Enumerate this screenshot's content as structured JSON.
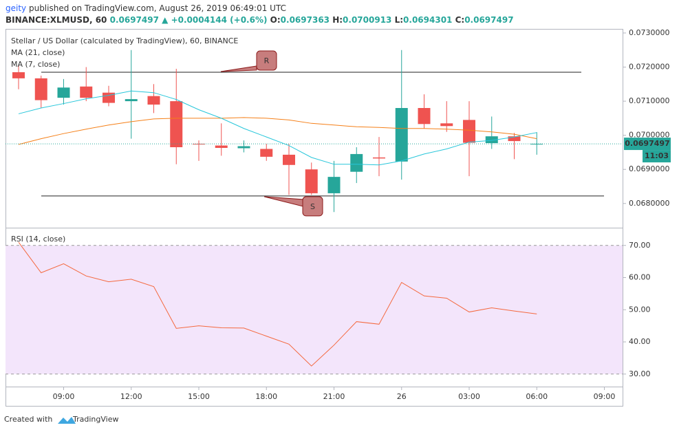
{
  "header": {
    "author": "geity",
    "published": "published on TradingView.com, August 26, 2019 06:49:01 UTC",
    "symbol": "BINANCE:XLMUSD, 60",
    "last": "0.0697497",
    "change": "▲ +0.0004144 (+0.6%)",
    "ohlc": [
      {
        "label": "O:",
        "value": "0.0697363"
      },
      {
        "label": "H:",
        "value": "0.0700913"
      },
      {
        "label": "L:",
        "value": "0.0694301"
      },
      {
        "label": "C:",
        "value": "0.0697497"
      }
    ]
  },
  "footer": {
    "created": "Created with",
    "brand": "TradingView"
  },
  "chart_data": [
    {
      "type": "candlestick",
      "title": "Stellar / US Dollar (calculated by TradingView), 60, BINANCE",
      "up_color": "#26a69a",
      "down_color": "#ef5350",
      "categories": [
        null,
        null,
        "09:00",
        null,
        null,
        "12:00",
        null,
        null,
        "15:00",
        null,
        null,
        "18:00",
        null,
        null,
        "21:00",
        null,
        null,
        "26",
        null,
        null,
        "03:00",
        null,
        null,
        "06:00",
        null,
        null,
        "09:00"
      ],
      "open": [
        0.07185,
        0.07167,
        0.0711,
        0.07143,
        0.07125,
        0.071,
        0.07115,
        0.071,
        0.06975,
        0.0697,
        0.06962,
        0.0696,
        0.06943,
        0.069,
        0.0683,
        0.06893,
        0.06935,
        0.06923,
        0.0708,
        0.07035,
        0.07045,
        0.06977,
        0.06997,
        0.0697363,
        null,
        null,
        null
      ],
      "high": [
        0.07205,
        0.07175,
        0.07165,
        0.072,
        0.07145,
        0.0725,
        0.0715,
        0.07195,
        0.06985,
        0.07035,
        0.06985,
        0.06975,
        0.06975,
        0.0692,
        0.06925,
        0.06965,
        0.06995,
        0.0725,
        0.0712,
        0.071,
        0.071,
        0.07055,
        0.07007,
        0.0700913,
        null,
        null,
        null
      ],
      "low": [
        0.07135,
        0.0708,
        0.0709,
        0.071,
        0.07085,
        0.0699,
        0.07065,
        0.06915,
        0.06925,
        0.0694,
        0.0695,
        0.06925,
        0.06825,
        0.06825,
        0.06775,
        0.0686,
        0.0688,
        0.0687,
        0.0702,
        0.0701,
        0.0688,
        0.0696,
        0.0693,
        0.0694301,
        null,
        null,
        null
      ],
      "close": [
        0.07167,
        0.07103,
        0.0714,
        0.0711,
        0.07095,
        0.07106,
        0.0709,
        0.06965,
        0.06973,
        0.06963,
        0.06968,
        0.06937,
        0.06913,
        0.0683,
        0.06878,
        0.06945,
        0.06932,
        0.0708,
        0.07033,
        0.07027,
        0.06978,
        0.06997,
        0.06983,
        0.0697497,
        null,
        null,
        null
      ],
      "series": [
        {
          "name": "MA (21, close)",
          "color": "#f57f17",
          "values": [
            0.06973,
            0.0699,
            0.07005,
            0.07018,
            0.0703,
            0.0704,
            0.07048,
            0.0705,
            0.0705,
            0.0705,
            0.07052,
            0.0705,
            0.07045,
            0.07035,
            0.0703,
            0.07025,
            0.07023,
            0.0702,
            0.0702,
            0.07018,
            0.07015,
            0.0701,
            0.07003,
            0.0699,
            null,
            null,
            null
          ]
        },
        {
          "name": "MA (7, close)",
          "color": "#26c6da",
          "values": [
            0.07063,
            0.0708,
            0.07093,
            0.07107,
            0.07117,
            0.0713,
            0.07125,
            0.07105,
            0.07075,
            0.0705,
            0.0702,
            0.06995,
            0.0697,
            0.06935,
            0.06915,
            0.06915,
            0.06913,
            0.06925,
            0.06945,
            0.0696,
            0.0698,
            0.06985,
            0.06995,
            0.07008,
            null,
            null,
            null
          ]
        }
      ],
      "annotations": [
        {
          "label": "R",
          "value": 0.07185
        },
        {
          "label": "S",
          "value": 0.06822
        }
      ],
      "countdown": "11:03",
      "ylim": [
        0.06731,
        0.07312
      ],
      "yticks": [
        {
          "value": 0.068,
          "label": "0.0680000"
        },
        {
          "value": 0.069,
          "label": "0.0690000"
        },
        {
          "value": 0.07,
          "label": "0.0700000"
        },
        {
          "value": 0.071,
          "label": "0.0710000"
        },
        {
          "value": 0.072,
          "label": "0.0720000"
        },
        {
          "value": 0.073,
          "label": "0.0730000"
        }
      ]
    },
    {
      "type": "line",
      "title": "RSI (14, close)",
      "color": "#f4683d",
      "band": {
        "lower": 30,
        "upper": 70,
        "color": "#f3e5fb"
      },
      "values": [
        71,
        61.5,
        64.3,
        60.5,
        58.7,
        59.5,
        57.2,
        44.2,
        45,
        44.4,
        44.3,
        41.8,
        39.3,
        32.5,
        39,
        46.3,
        45.5,
        58.5,
        54.3,
        53.6,
        49.3,
        50.6,
        49.6,
        48.7,
        null,
        null,
        null
      ],
      "ylim": [
        26.1,
        75.3
      ],
      "yticks": [
        {
          "value": 30,
          "label": "30.00"
        },
        {
          "value": 40,
          "label": "40.00"
        },
        {
          "value": 50,
          "label": "50.00"
        },
        {
          "value": 60,
          "label": "60.00"
        },
        {
          "value": 70,
          "label": "70.00"
        }
      ]
    }
  ]
}
